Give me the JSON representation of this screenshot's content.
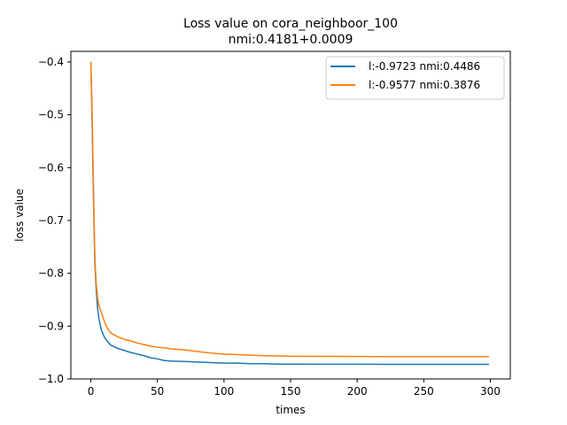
{
  "chart_data": {
    "type": "line",
    "title": "Loss value on cora_neighboor_100",
    "subtitle": "nmi:0.4181+0.0009",
    "xlabel": "times",
    "ylabel": "loss value",
    "xlim": [
      -15,
      315
    ],
    "ylim": [
      -1.0,
      -0.38
    ],
    "xticks": [
      0,
      50,
      100,
      150,
      200,
      250,
      300
    ],
    "yticks": [
      -1.0,
      -0.9,
      -0.8,
      -0.7,
      -0.6,
      -0.5,
      -0.4
    ],
    "ytick_labels": [
      "−1.0",
      "−0.9",
      "−0.8",
      "−0.7",
      "−0.6",
      "−0.5",
      "−0.4"
    ],
    "grid": false,
    "legend_position": "top-right",
    "series": [
      {
        "name": "l:-0.9723 nmi:0.4486",
        "color": "#1f77b4",
        "x": [
          0,
          1,
          2,
          3,
          4,
          5,
          6,
          8,
          10,
          12,
          15,
          20,
          25,
          30,
          35,
          40,
          45,
          50,
          55,
          60,
          70,
          80,
          90,
          100,
          110,
          120,
          130,
          140,
          150,
          175,
          200,
          225,
          250,
          275,
          299
        ],
        "y": [
          -0.4,
          -0.52,
          -0.66,
          -0.78,
          -0.83,
          -0.865,
          -0.885,
          -0.908,
          -0.92,
          -0.928,
          -0.936,
          -0.942,
          -0.946,
          -0.95,
          -0.953,
          -0.956,
          -0.96,
          -0.962,
          -0.965,
          -0.966,
          -0.967,
          -0.968,
          -0.969,
          -0.97,
          -0.97,
          -0.971,
          -0.971,
          -0.972,
          -0.972,
          -0.9722,
          -0.9722,
          -0.9723,
          -0.9723,
          -0.9723,
          -0.9723
        ]
      },
      {
        "name": "l:-0.9577 nmi:0.3876",
        "color": "#ff7f0e",
        "x": [
          0,
          1,
          2,
          3,
          4,
          5,
          6,
          8,
          10,
          12,
          15,
          20,
          25,
          30,
          35,
          40,
          45,
          50,
          55,
          60,
          70,
          80,
          90,
          100,
          110,
          120,
          130,
          140,
          150,
          175,
          200,
          225,
          250,
          275,
          299
        ],
        "y": [
          -0.4,
          -0.5,
          -0.64,
          -0.77,
          -0.82,
          -0.845,
          -0.86,
          -0.875,
          -0.89,
          -0.902,
          -0.913,
          -0.92,
          -0.925,
          -0.928,
          -0.932,
          -0.935,
          -0.938,
          -0.94,
          -0.941,
          -0.943,
          -0.945,
          -0.948,
          -0.951,
          -0.953,
          -0.954,
          -0.955,
          -0.956,
          -0.9565,
          -0.957,
          -0.9572,
          -0.9575,
          -0.9576,
          -0.9577,
          -0.9577,
          -0.9577
        ]
      }
    ]
  }
}
